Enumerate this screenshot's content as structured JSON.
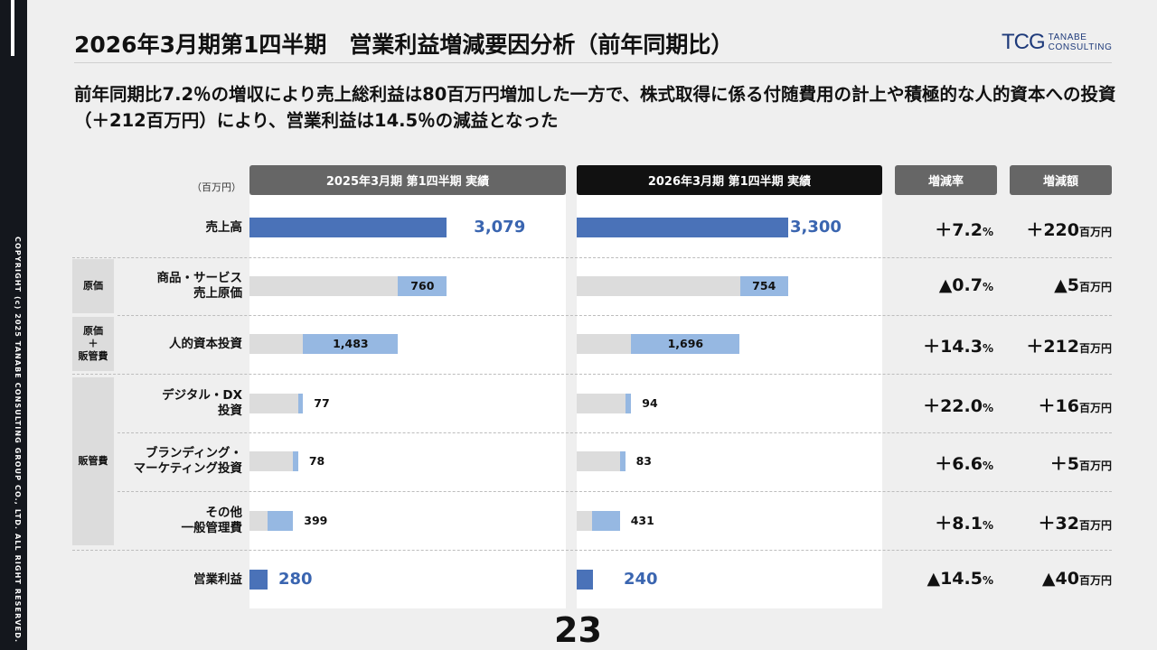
{
  "header": {
    "title": "2026年3月期第1四半期　営業利益増減要因分析（前年同期比）",
    "logo_mark": "TCG",
    "logo_line1": "TANABE",
    "logo_line2": "CONSULTING"
  },
  "lead": "前年同期比7.2％の増収により売上総利益は80百万円増加した一方で、株式取得に係る付随費用の計上や積極的な人的資本への投資（＋212百万円）により、営業利益は14.5％の減益となった",
  "sidebar": {
    "copyright": "COPYRIGHT (c) 2025 TANABE CONSULTING GROUP CO., LTD. ALL RIGHT RESERVED."
  },
  "page_number": "23",
  "colors": {
    "dark_blue": "#4a72b8",
    "light_blue": "#96b8e2",
    "grey": "#dcdcdc",
    "header_grey": "#666666",
    "header_black": "#111111"
  },
  "chart_data": {
    "type": "bar",
    "unit_label": "（百万円）",
    "column_headers": [
      "2025年3月期 第1四半期 実績",
      "2026年3月期 第1四半期 実績",
      "増減率",
      "増減額"
    ],
    "groups": [
      "原価",
      "原価\n＋\n販管費",
      "販管費"
    ],
    "categories": [
      "売上高",
      "商品・サービス\n売上原価",
      "人的資本投資",
      "デジタル・DX\n投資",
      "ブランディング・\nマーケティング投資",
      "その他\n一般管理費",
      "営業利益"
    ],
    "series": [
      {
        "name": "2025年3月期 第1四半期 実績",
        "values": [
          3079,
          760,
          1483,
          77,
          78,
          399,
          280
        ]
      },
      {
        "name": "2026年3月期 第1四半期 実績",
        "values": [
          3300,
          754,
          1696,
          94,
          83,
          431,
          240
        ]
      }
    ],
    "value_labels_a": [
      "3,079",
      "760",
      "1,483",
      "77",
      "78",
      "399",
      "280"
    ],
    "value_labels_b": [
      "3,300",
      "754",
      "1,696",
      "94",
      "83",
      "431",
      "240"
    ],
    "change_rate": [
      {
        "num": "＋7.2",
        "unit": "%"
      },
      {
        "num": "▲0.7",
        "unit": "%"
      },
      {
        "num": "＋14.3",
        "unit": "%"
      },
      {
        "num": "＋22.0",
        "unit": "%"
      },
      {
        "num": "＋6.6",
        "unit": "%"
      },
      {
        "num": "＋8.1",
        "unit": "%"
      },
      {
        "num": "▲14.5",
        "unit": "%"
      }
    ],
    "change_amount": [
      {
        "num": "＋220",
        "unit": "百万円"
      },
      {
        "num": "▲5",
        "unit": "百万円"
      },
      {
        "num": "＋212",
        "unit": "百万円"
      },
      {
        "num": "＋16",
        "unit": "百万円"
      },
      {
        "num": "＋5",
        "unit": "百万円"
      },
      {
        "num": "＋32",
        "unit": "百万円"
      },
      {
        "num": "▲40",
        "unit": "百万円"
      }
    ],
    "cumulative_after": [
      3079,
      2319,
      836,
      759,
      681,
      282,
      0
    ]
  }
}
